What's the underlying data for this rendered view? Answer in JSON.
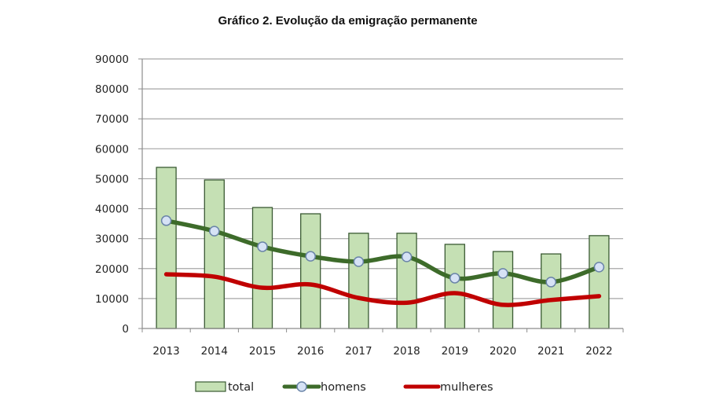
{
  "chart_data": {
    "type": "bar+line",
    "title": "Gráfico 2. Evolução da emigração permanente",
    "xlabel": "",
    "ylabel": "",
    "categories": [
      "2013",
      "2014",
      "2015",
      "2016",
      "2017",
      "2018",
      "2019",
      "2020",
      "2021",
      "2022"
    ],
    "ylim": [
      0,
      90000
    ],
    "yticks": [
      0,
      10000,
      20000,
      30000,
      40000,
      50000,
      60000,
      70000,
      80000,
      90000
    ],
    "ytick_labels": [
      "0",
      "10000",
      "20000",
      "30000",
      "40000",
      "50000",
      "60000",
      "70000",
      "80000",
      "90000"
    ],
    "grid": true,
    "legend_position": "bottom",
    "series": [
      {
        "name": "total",
        "type": "bar",
        "color": "#c5e0b4",
        "edge": "#3a5a33",
        "values": [
          53800,
          49600,
          40400,
          38300,
          31800,
          31800,
          28100,
          25700,
          24900,
          31000
        ]
      },
      {
        "name": "homens",
        "type": "line",
        "color": "#3d6b2a",
        "marker_fill": "#d6e2f5",
        "marker_edge": "#6a84a8",
        "smooth": true,
        "values": [
          36000,
          32500,
          27300,
          24100,
          22300,
          23900,
          16800,
          18400,
          15500,
          20500
        ]
      },
      {
        "name": "mulheres",
        "type": "line",
        "color": "#c00000",
        "smooth": true,
        "values": [
          18100,
          17300,
          13600,
          14700,
          10200,
          8600,
          11800,
          7900,
          9500,
          10800
        ]
      }
    ]
  }
}
